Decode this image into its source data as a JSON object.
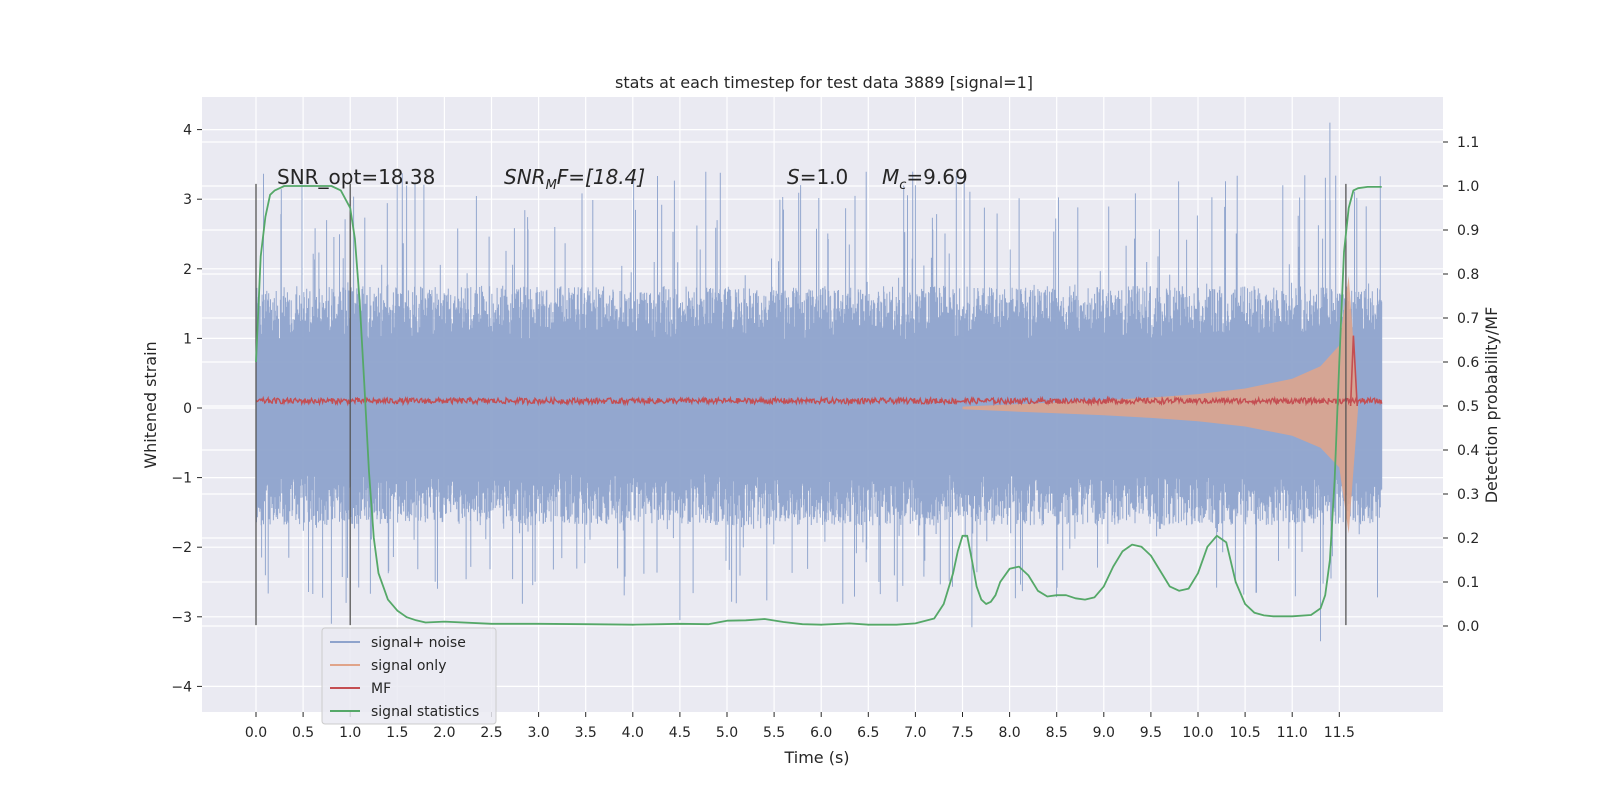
{
  "chart_data": {
    "type": "line",
    "title": "stats at each timestep for test data 3889 [signal=1]",
    "xlabel": "Time (s)",
    "ylabel": "Whitened strain",
    "ylabel_right": "Detection probability/MF",
    "xlim": [
      -0.6,
      12.6
    ],
    "ylim": [
      -4.4,
      4.4
    ],
    "ylim_right": [
      -0.25,
      1.19
    ],
    "x_ticks": [
      0.0,
      0.5,
      1.0,
      1.5,
      2.0,
      2.5,
      3.0,
      3.5,
      4.0,
      4.5,
      5.0,
      5.5,
      6.0,
      6.5,
      7.0,
      7.5,
      8.0,
      8.5,
      9.0,
      9.5,
      10.0,
      10.5,
      11.0,
      11.5
    ],
    "x_tick_labels": [
      "0.0",
      "0.5",
      "1.0",
      "1.5",
      "2.0",
      "2.5",
      "3.0",
      "3.5",
      "4.0",
      "4.5",
      "5.0",
      "5.5",
      "6.0",
      "6.5",
      "7.0",
      "7.5",
      "8.0",
      "8.5",
      "9.0",
      "9.5",
      "10.0",
      "10.5",
      "11.0",
      "11.5"
    ],
    "y_ticks": [
      4,
      3,
      2,
      1,
      0,
      -1,
      -2,
      -3,
      -4
    ],
    "y_tick_labels": [
      "4",
      "3",
      "2",
      "1",
      "0",
      "−1",
      "−2",
      "−3",
      "−4"
    ],
    "y_right_ticks": [
      1.1,
      1.0,
      0.9,
      0.8,
      0.7,
      0.6,
      0.5,
      0.4,
      0.3,
      0.2,
      0.1,
      0.0
    ],
    "y_right_tick_labels": [
      "1.1",
      "1.0",
      "0.9",
      "0.8",
      "0.7",
      "0.6",
      "0.5",
      "0.4",
      "0.3",
      "0.2",
      "0.1",
      "0.0"
    ],
    "grid": true,
    "legend_position": "lower-left",
    "annotations": {
      "snr_opt": "SNR_opt=18.38",
      "snr_mf_main": "SNR",
      "snr_mf_sub": "M",
      "snr_mf_rest": "F=[18.4]",
      "s_main": "S",
      "s_rest": "=1.0",
      "mc_main": "M",
      "mc_sub": "c",
      "mc_rest": "=9.69"
    },
    "vertical_markers": [
      0.0,
      1.0,
      11.57
    ],
    "series": [
      {
        "name": "signal+ noise",
        "color": "#8ea3cc",
        "envelope": {
          "t": [
            0.0,
            11.95
          ],
          "typical_upper": 1.3,
          "typical_lower": -1.25,
          "peak_upper": 4.1,
          "peak_lower": -3.35
        }
      },
      {
        "name": "signal only",
        "color": "#e0a48a",
        "envelope": {
          "t": [
            7.5,
            8.0,
            8.5,
            9.0,
            9.5,
            10.0,
            10.5,
            11.0,
            11.3,
            11.5,
            11.6,
            11.7
          ],
          "amp": [
            0.02,
            0.05,
            0.08,
            0.11,
            0.15,
            0.2,
            0.28,
            0.42,
            0.6,
            0.9,
            1.9,
            0.0
          ]
        }
      },
      {
        "name": "MF",
        "color": "#c44e52",
        "baseline": 0.5,
        "spike": {
          "t": 11.65,
          "value": 0.66
        }
      },
      {
        "name": "signal statistics",
        "color": "#55a868",
        "x": [
          0.0,
          0.05,
          0.1,
          0.15,
          0.2,
          0.3,
          0.5,
          0.7,
          0.8,
          0.9,
          0.95,
          1.0,
          1.05,
          1.1,
          1.15,
          1.2,
          1.25,
          1.3,
          1.4,
          1.5,
          1.6,
          1.7,
          1.8,
          2.0,
          2.5,
          3.0,
          3.5,
          4.0,
          4.3,
          4.5,
          4.8,
          5.0,
          5.2,
          5.4,
          5.6,
          5.8,
          6.0,
          6.3,
          6.5,
          6.8,
          7.0,
          7.2,
          7.3,
          7.4,
          7.45,
          7.5,
          7.55,
          7.6,
          7.65,
          7.7,
          7.75,
          7.8,
          7.85,
          7.9,
          8.0,
          8.1,
          8.2,
          8.3,
          8.4,
          8.5,
          8.6,
          8.7,
          8.8,
          8.9,
          9.0,
          9.1,
          9.2,
          9.3,
          9.4,
          9.5,
          9.6,
          9.7,
          9.8,
          9.9,
          10.0,
          10.1,
          10.2,
          10.3,
          10.4,
          10.5,
          10.6,
          10.7,
          10.8,
          11.0,
          11.2,
          11.3,
          11.35,
          11.4,
          11.45,
          11.5,
          11.55,
          11.6,
          11.65,
          11.7,
          11.8,
          11.95
        ],
        "y": [
          0.6,
          0.84,
          0.93,
          0.98,
          0.99,
          1.0,
          1.0,
          1.0,
          1.0,
          0.99,
          0.97,
          0.95,
          0.88,
          0.74,
          0.55,
          0.35,
          0.2,
          0.12,
          0.06,
          0.035,
          0.02,
          0.013,
          0.008,
          0.01,
          0.005,
          0.005,
          0.004,
          0.003,
          0.004,
          0.005,
          0.004,
          0.012,
          0.013,
          0.016,
          0.009,
          0.004,
          0.003,
          0.006,
          0.003,
          0.003,
          0.006,
          0.017,
          0.05,
          0.12,
          0.17,
          0.205,
          0.205,
          0.15,
          0.09,
          0.06,
          0.05,
          0.055,
          0.07,
          0.1,
          0.13,
          0.135,
          0.115,
          0.08,
          0.067,
          0.07,
          0.07,
          0.063,
          0.06,
          0.065,
          0.09,
          0.135,
          0.17,
          0.185,
          0.18,
          0.16,
          0.125,
          0.09,
          0.08,
          0.085,
          0.12,
          0.18,
          0.205,
          0.19,
          0.1,
          0.05,
          0.03,
          0.024,
          0.022,
          0.022,
          0.025,
          0.04,
          0.07,
          0.15,
          0.33,
          0.6,
          0.85,
          0.95,
          0.99,
          0.995,
          0.998,
          0.998
        ]
      }
    ]
  }
}
